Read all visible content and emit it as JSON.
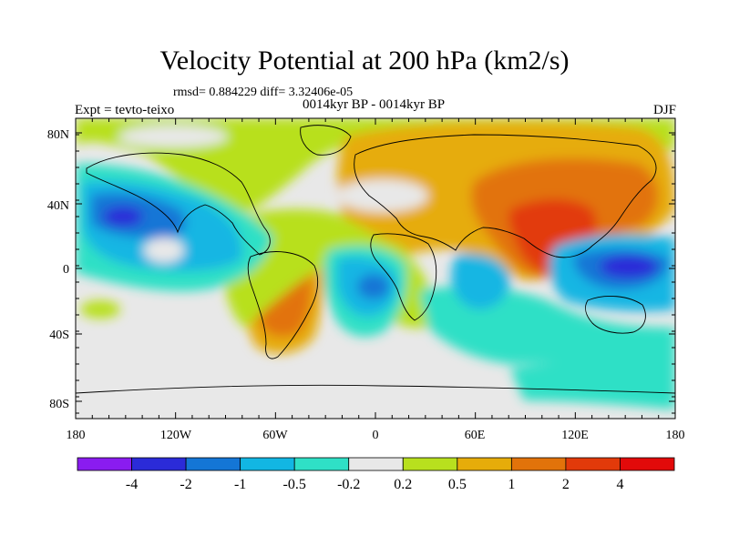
{
  "title": "Velocity Potential at 200 hPa (km2/s)",
  "stats": "rmsd= 0.884229 diff= 3.32406e-05",
  "subtitle": "0014kyr BP - 0014kyr BP",
  "expt": "Expt = tevto-teixo",
  "season": "DJF",
  "y_ticks": [
    "80N",
    "40N",
    "0",
    "40S",
    "80S"
  ],
  "x_ticks": [
    "180",
    "120W",
    "60W",
    "0",
    "60E",
    "120E",
    "180"
  ],
  "colorbar": {
    "labels": [
      "-4",
      "-2",
      "-1",
      "-0.5",
      "-0.2",
      "0.2",
      "0.5",
      "1",
      "2",
      "4"
    ],
    "colors": [
      "#8a1cf0",
      "#2b2bd8",
      "#1476d6",
      "#12b6e3",
      "#2fe0c6",
      "#e8e8e8",
      "#b8e01e",
      "#e6ac0a",
      "#e2730a",
      "#e23a0a",
      "#e20a0a"
    ]
  }
}
